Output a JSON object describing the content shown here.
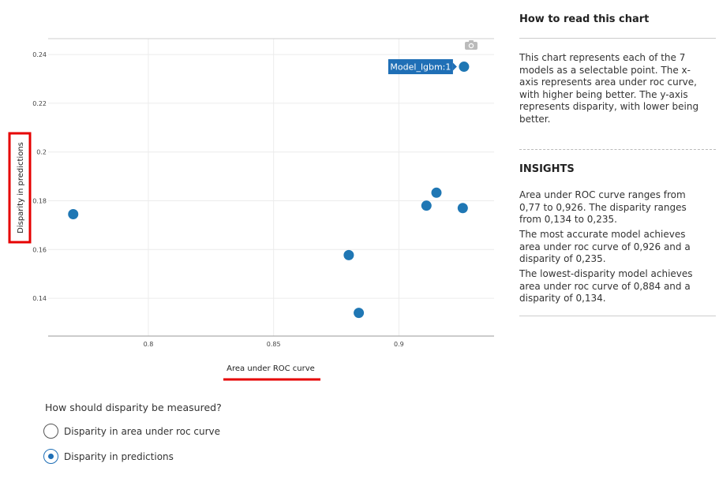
{
  "chart_data": {
    "type": "scatter",
    "xlabel": "Area under ROC curve",
    "ylabel": "Disparity in predictions",
    "xlim": [
      0.76,
      0.938
    ],
    "ylim": [
      0.1245,
      0.2465
    ],
    "xticks": [
      0.8,
      0.85,
      0.9
    ],
    "yticks": [
      0.14,
      0.16,
      0.18,
      0.2,
      0.22,
      0.24
    ],
    "xtick_labels": [
      "0.8",
      "0.85",
      "0.9"
    ],
    "ytick_labels": [
      "0.14",
      "0.16",
      "0.18",
      "0.2",
      "0.22",
      "0.24"
    ],
    "grid": true,
    "point_color": "#1f77b4",
    "points": [
      {
        "x": 0.77,
        "y": 0.1745
      },
      {
        "x": 0.88,
        "y": 0.1577
      },
      {
        "x": 0.884,
        "y": 0.134
      },
      {
        "x": 0.911,
        "y": 0.178
      },
      {
        "x": 0.915,
        "y": 0.1833
      },
      {
        "x": 0.9255,
        "y": 0.177
      },
      {
        "x": 0.926,
        "y": 0.235
      }
    ],
    "annotation": {
      "label": "Model_lgbm:1",
      "point_index": 6
    }
  },
  "side_panel": {
    "how_title": "How to read this chart",
    "how_text": "This chart represents each of the 7 models as a selectable point. The x-axis represents area under roc curve, with higher being better. The y-axis represents disparity, with lower being better.",
    "insights_title": "INSIGHTS",
    "insights": [
      "Area under ROC curve ranges from 0,77 to 0,926. The disparity ranges from 0,134 to 0,235.",
      "The most accurate model achieves area under roc curve of 0,926 and a disparity of 0,235.",
      "The lowest-disparity model achieves area under roc curve of 0,884 and a disparity of 0,134."
    ]
  },
  "controls": {
    "question": "How should disparity be measured?",
    "options": [
      {
        "label": "Disparity in area under roc curve",
        "checked": false
      },
      {
        "label": "Disparity in predictions",
        "checked": true
      }
    ]
  },
  "colors": {
    "accent": "#1f6fb6",
    "highlight": "#e60000"
  },
  "icons": {
    "toolbar": "camera-icon"
  }
}
